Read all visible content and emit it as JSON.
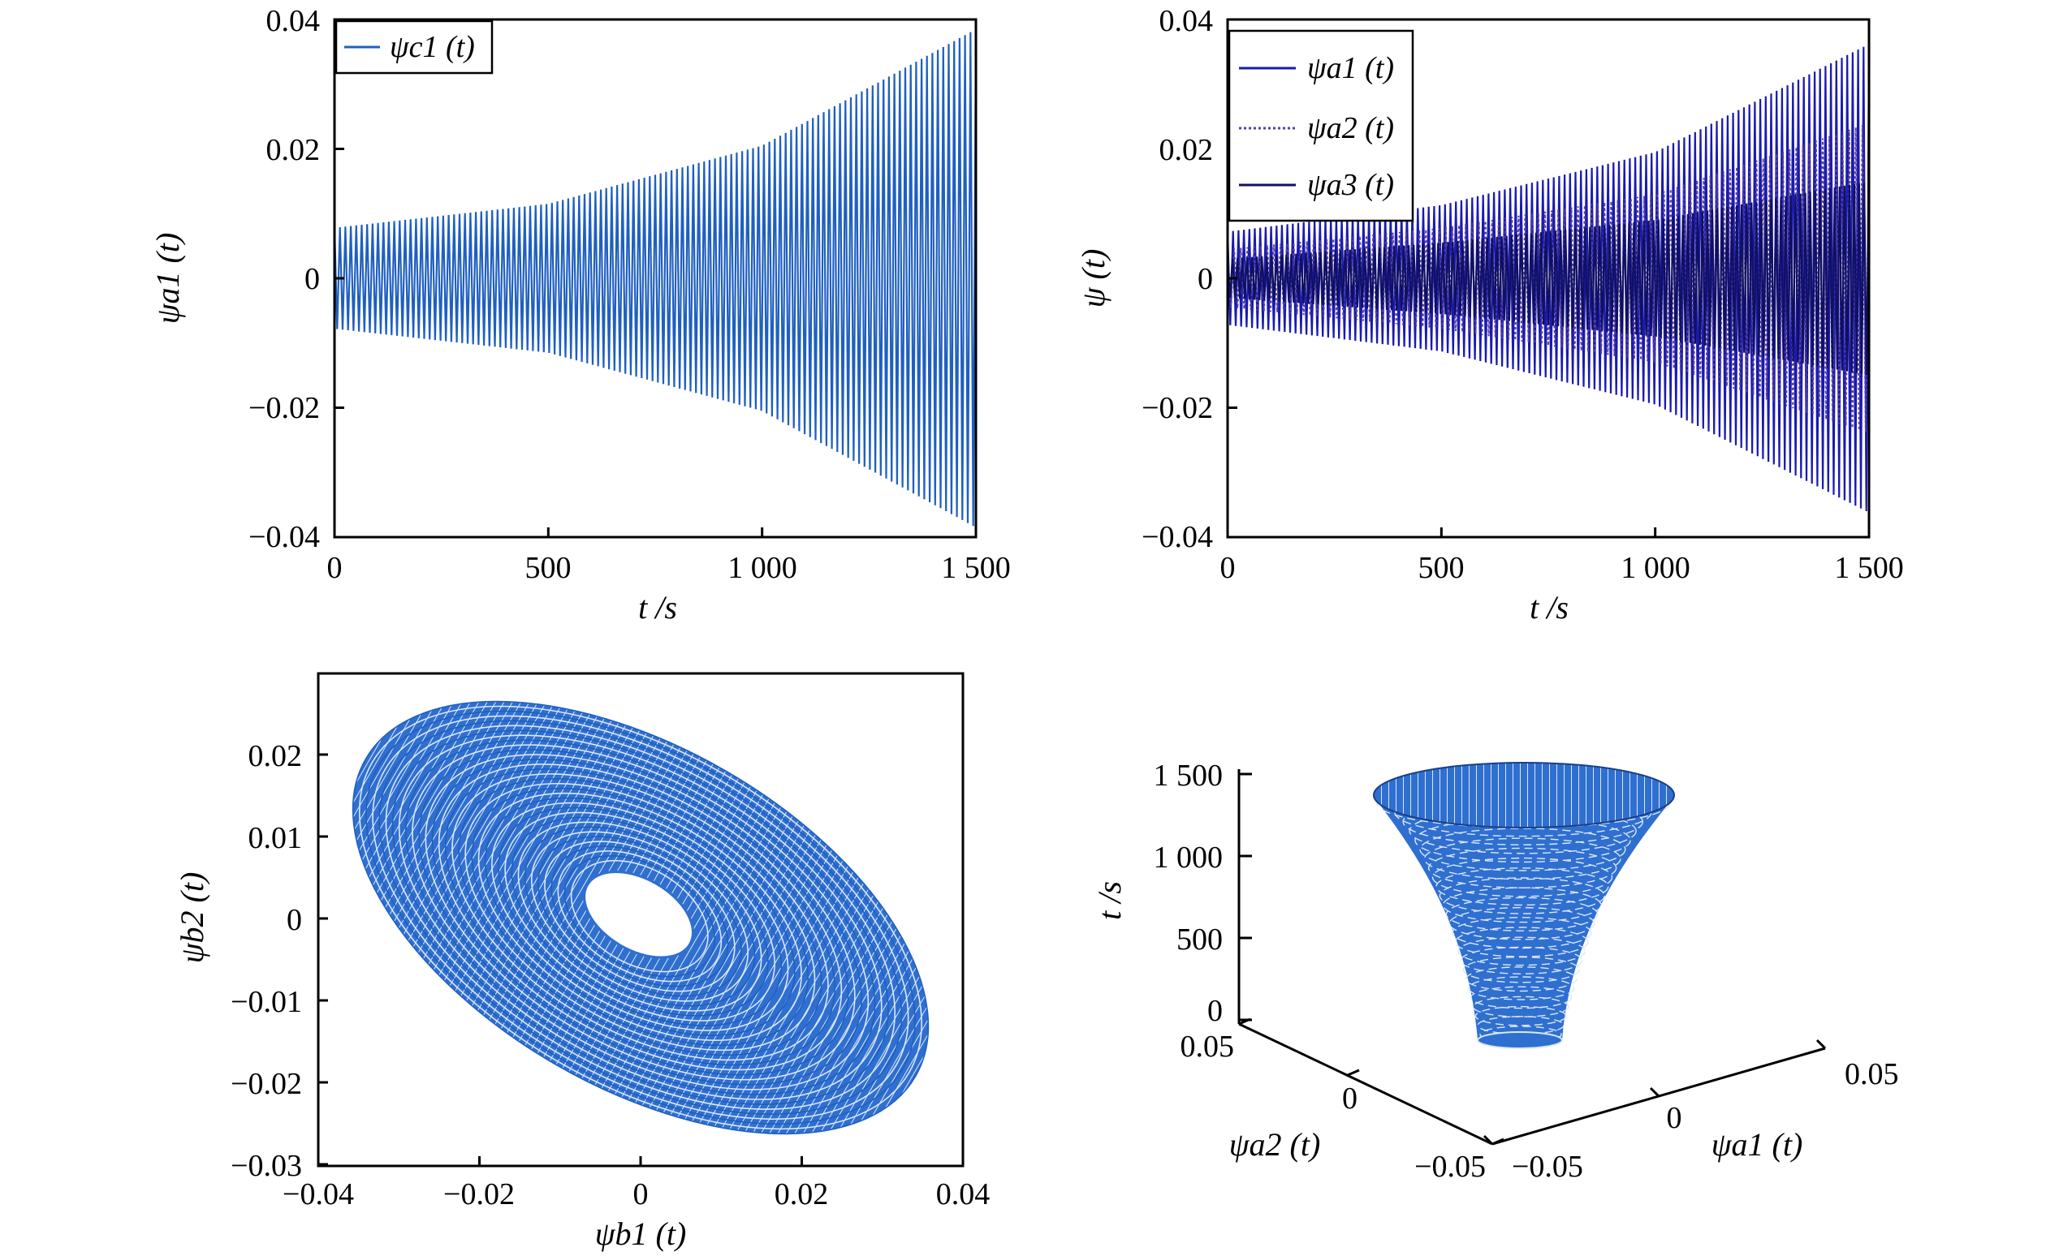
{
  "chart_data": [
    {
      "type": "line",
      "panel": "top-left",
      "xlabel": "t /s",
      "ylabel": "ψa1 (t)",
      "xlim": [
        0,
        1500
      ],
      "ylim": [
        -0.04,
        0.04
      ],
      "xticks": [
        "0",
        "500",
        "1 000",
        "1 500"
      ],
      "yticks": [
        "0.04",
        "0.02",
        "0",
        "−0.02",
        "−0.04"
      ],
      "legend_position": "top-left",
      "series": [
        {
          "name": "ψc1 (t)",
          "color": "#1f5fc0",
          "envelope": {
            "t": [
              0,
              500,
              1000,
              1500
            ],
            "amplitude": [
              0.0078,
              0.0115,
              0.0205,
              0.0385
            ]
          }
        }
      ]
    },
    {
      "type": "line",
      "panel": "top-right",
      "xlabel": "t /s",
      "ylabel": "ψ (t)",
      "xlim": [
        0,
        1500
      ],
      "ylim": [
        -0.04,
        0.04
      ],
      "xticks": [
        "0",
        "500",
        "1 000",
        "1 500"
      ],
      "yticks": [
        "0.04",
        "0.02",
        "0",
        "−0.02",
        "−0.04"
      ],
      "legend_position": "top-left",
      "series": [
        {
          "name": "ψa1 (t)",
          "color": "#1a1ab0",
          "envelope": {
            "t": [
              0,
              500,
              1000,
              1500
            ],
            "amplitude": [
              0.0072,
              0.0113,
              0.0195,
              0.0362
            ]
          }
        },
        {
          "name": "ψa2 (t)",
          "color": "#5a3fa0",
          "envelope": {
            "t": [
              0,
              500,
              1000,
              1500
            ],
            "amplitude": [
              0.0045,
              0.0078,
              0.013,
              0.024
            ]
          }
        },
        {
          "name": "ψa3 (t)",
          "color": "#101060",
          "envelope": {
            "t": [
              0,
              500,
              1000,
              1500
            ],
            "amplitude": [
              0.003,
              0.0055,
              0.009,
              0.015
            ]
          }
        }
      ]
    },
    {
      "type": "line",
      "panel": "bottom-left",
      "xlabel": "ψb1 (t)",
      "ylabel": "ψb2 (t)",
      "xlim": [
        -0.04,
        0.04
      ],
      "ylim": [
        -0.03,
        0.03
      ],
      "xticks": [
        "−0.04",
        "−0.02",
        "0",
        "0.02",
        "0.04"
      ],
      "yticks": [
        "0.02",
        "0.01",
        "0",
        "−0.01",
        "−0.02",
        "−0.03"
      ],
      "series": [
        {
          "name": "",
          "color": "#2f6fd0",
          "orbit": {
            "outer_semi_x": 0.036,
            "outer_semi_y": 0.0255,
            "inner_semi_x": 0.0065,
            "inner_semi_y": 0.0045,
            "tilt": "negative slope"
          }
        }
      ]
    },
    {
      "type": "line",
      "panel": "bottom-right",
      "projection": "3d",
      "xlabel": "ψa1 (t)",
      "ylabel": "ψa2 (t)",
      "zlabel": "t /s",
      "xticks": [
        "−0.05",
        "0",
        "0.05"
      ],
      "yticks": [
        "−0.05",
        "0",
        "0.05"
      ],
      "zticks": [
        "0",
        "500",
        "1 000",
        "1 500"
      ],
      "series": [
        {
          "name": "",
          "color": "#2f6fd0",
          "envelope": {
            "t": [
              0,
              500,
              1000,
              1500
            ],
            "radius": [
              0.0075,
              0.0115,
              0.0205,
              0.038
            ]
          }
        }
      ]
    }
  ],
  "colors": {
    "axis": "#000000",
    "fill_blue": "#2f6fd0",
    "stripe_light": "#dbe8f7",
    "stripe_dark": "#1a3f8a"
  }
}
